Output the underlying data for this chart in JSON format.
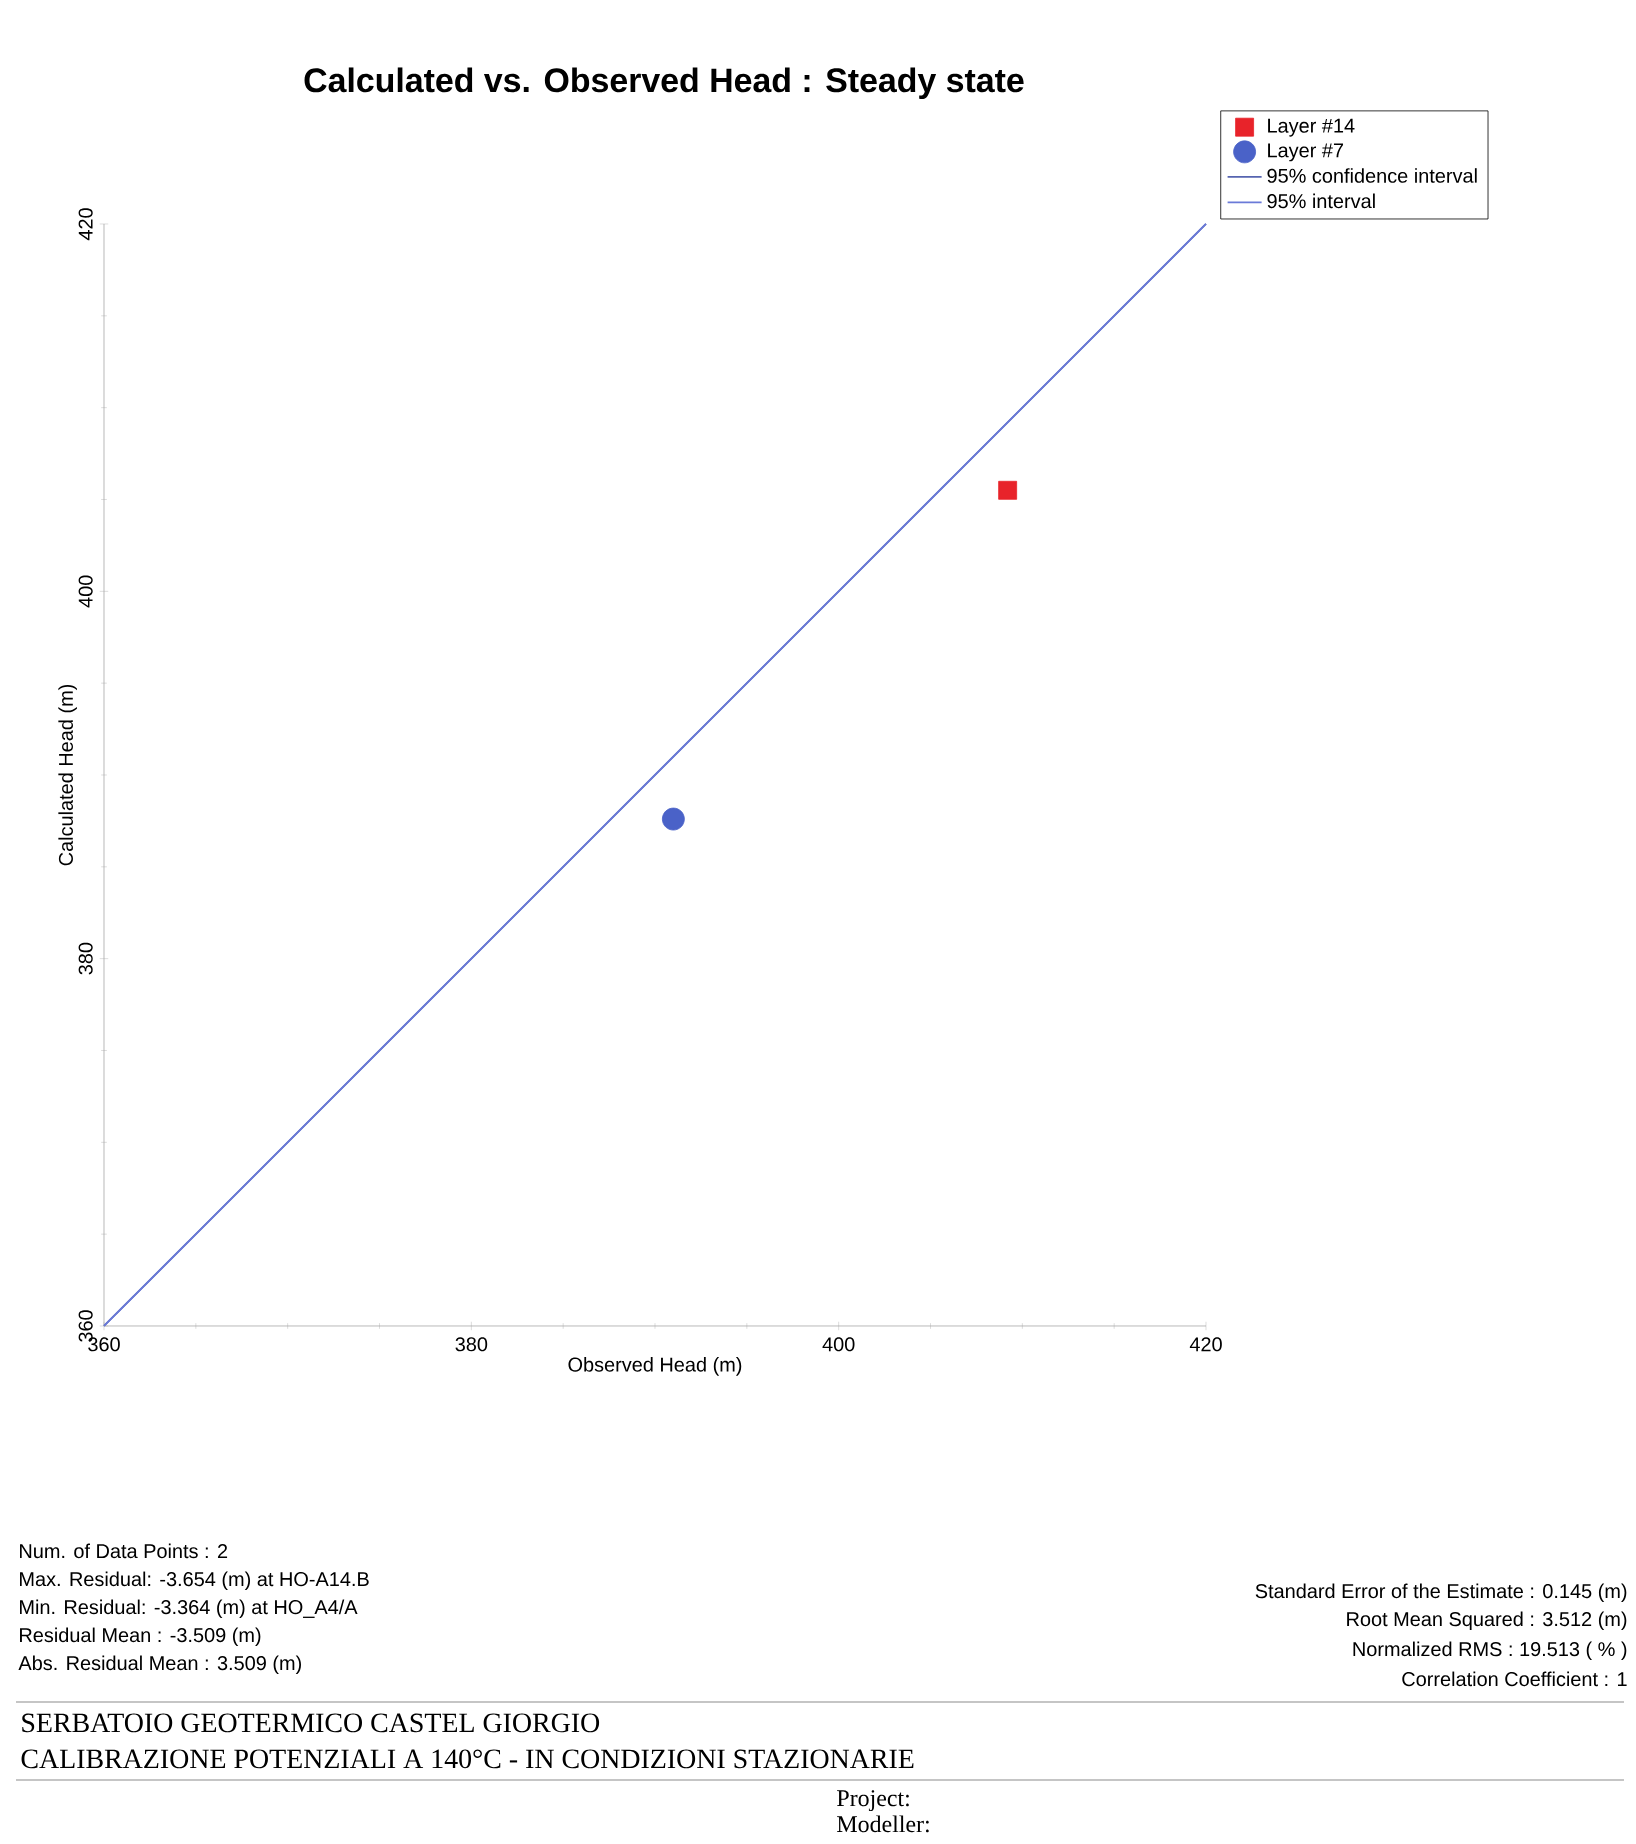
{
  "chart_data": {
    "type": "scatter",
    "title": "Calculated vs. Observed Head : Steady state",
    "xlabel": "Observed Head (m)",
    "ylabel": "Calculated Head (m)",
    "xlim": [
      360,
      420
    ],
    "ylim": [
      360,
      420
    ],
    "xticks": [
      360,
      380,
      400,
      420
    ],
    "yticks": [
      360,
      380,
      400,
      420
    ],
    "legend": "top right",
    "series": [
      {
        "name": "Layer #14",
        "marker": "square",
        "color": "#e8232a",
        "x": [
          409.2
        ],
        "values": [
          405.5
        ]
      },
      {
        "name": "Layer #7",
        "marker": "circle",
        "color": "#4a62c8",
        "x": [
          391.0
        ],
        "values": [
          387.6
        ]
      },
      {
        "name": "95% confidence interval",
        "type": "line",
        "marker": "none",
        "color": "#5664b0",
        "x": [
          360,
          420
        ],
        "values": [
          360,
          420
        ]
      },
      {
        "name": "95% interval",
        "type": "line",
        "marker": "none",
        "color": "#6a7ad8",
        "x": [
          360,
          420
        ],
        "values": [
          360,
          420
        ]
      }
    ],
    "annotations": [
      "Num. of Data Points : 2",
      "Max. Residual: -3.654 (m) at HO-A14.B",
      "Min. Residual: -3.364 (m) at HO_A4/A",
      "Residual Mean : -3.509 (m)",
      "Abs. Residual Mean : 3.509 (m)",
      "Standard Error of the Estimate : 0.145 (m)",
      "Root Mean Squared : 3.512 (m)",
      "Normalized RMS : 19.513 ( % )",
      "Correlation Coefficient : 1",
      "SERBATOIO GEOTERMICO CASTEL GIORGIO",
      "CALIBRAZIONE  POTENZIALI A 140°C - IN CONDIZIONI  STAZIONARIE",
      "Project:",
      "Modeller:"
    ]
  }
}
